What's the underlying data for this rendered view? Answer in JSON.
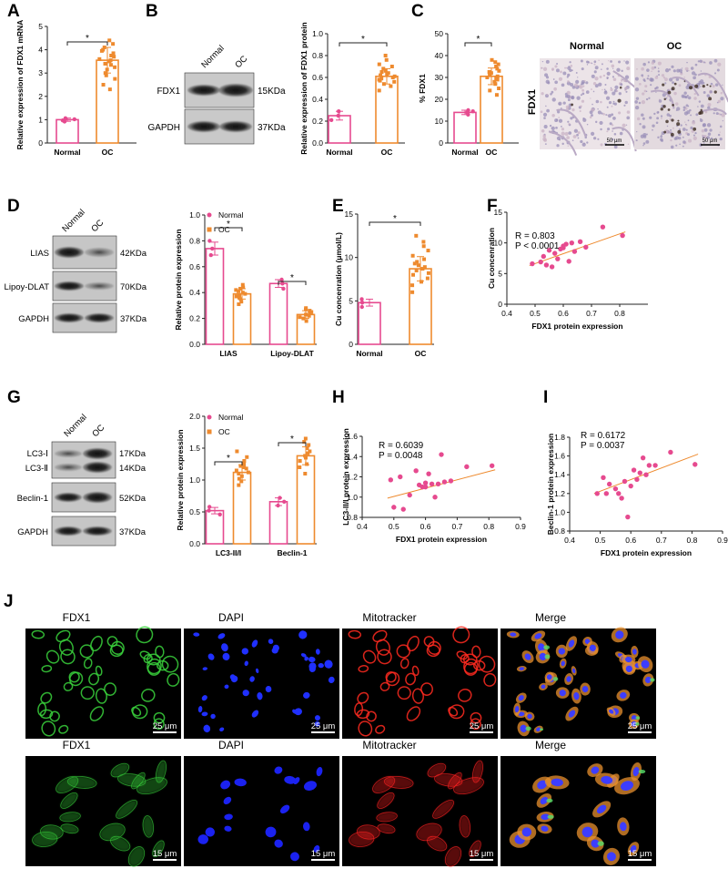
{
  "colors": {
    "normal": "#e64a8f",
    "oc": "#ee8a2e",
    "fit": "#ee8a2e",
    "axis": "#222222"
  },
  "panels": {
    "A": {
      "label": "A"
    },
    "B": {
      "label": "B"
    },
    "C": {
      "label": "C"
    },
    "D": {
      "label": "D"
    },
    "E": {
      "label": "E"
    },
    "F": {
      "label": "F"
    },
    "G": {
      "label": "G"
    },
    "H": {
      "label": "H"
    },
    "I": {
      "label": "I"
    },
    "J": {
      "label": "J"
    }
  },
  "significance": "*",
  "western_blots": {
    "B": {
      "lanes": [
        "Normal",
        "OC"
      ],
      "rows": [
        {
          "name": "FDX1",
          "size": "15KDa"
        },
        {
          "name": "GAPDH",
          "size": "37KDa"
        }
      ]
    },
    "D": {
      "lanes": [
        "Normal",
        "OC"
      ],
      "rows": [
        {
          "name": "LIAS",
          "size": "42KDa"
        },
        {
          "name": "Lipoy-DLAT",
          "size": "70KDa"
        },
        {
          "name": "GAPDH",
          "size": "37KDa"
        }
      ]
    },
    "G": {
      "lanes": [
        "Normal",
        "OC"
      ],
      "rows": [
        {
          "name1": "LC3-Ⅰ",
          "name2": "LC3-Ⅱ",
          "size1": "17KDa",
          "size2": "14KDa"
        },
        {
          "name": "Beclin-1",
          "size": "52KDa"
        },
        {
          "name": "GAPDH",
          "size": "37KDa"
        }
      ]
    }
  },
  "ihc": {
    "row_label": "FDX1",
    "columns": [
      "Normal",
      "OC"
    ],
    "scalebar": "50 μm"
  },
  "fluorescence": {
    "channels": [
      "FDX1",
      "DAPI",
      "Mitotracker",
      "Merge"
    ],
    "rows": [
      {
        "scalebar": "25 μm"
      },
      {
        "scalebar": "15 μm"
      }
    ]
  },
  "chart_data": [
    {
      "panel": "A",
      "type": "bar",
      "categories": [
        "Normal",
        "OC"
      ],
      "values": [
        1.0,
        3.55
      ],
      "errors": [
        0.07,
        0.55
      ],
      "ylabel": "Relative expression of FDX1 mRNA",
      "ylim": [
        0,
        5
      ],
      "yticks": [
        0,
        1,
        2,
        3,
        4,
        5
      ],
      "points": [
        [
          0.92,
          0.97,
          1.02,
          1.06
        ],
        [
          2.3,
          2.5,
          2.75,
          2.9,
          3.0,
          3.15,
          3.25,
          3.35,
          3.4,
          3.5,
          3.55,
          3.6,
          3.7,
          3.75,
          3.85,
          3.95,
          4.0,
          4.1,
          4.25,
          4.4
        ]
      ]
    },
    {
      "panel": "B",
      "type": "bar",
      "categories": [
        "Normal",
        "OC"
      ],
      "values": [
        0.25,
        0.61
      ],
      "errors": [
        0.04,
        0.07
      ],
      "ylabel": "Relative expression of FDX1 protein",
      "ylim": [
        0,
        1.0
      ],
      "yticks": [
        0,
        0.2,
        0.4,
        0.6,
        0.8,
        1.0
      ],
      "points": [
        [
          0.21,
          0.25,
          0.29
        ],
        [
          0.48,
          0.52,
          0.54,
          0.56,
          0.57,
          0.58,
          0.59,
          0.6,
          0.61,
          0.62,
          0.63,
          0.64,
          0.65,
          0.66,
          0.68,
          0.7,
          0.72,
          0.76,
          0.8
        ]
      ]
    },
    {
      "panel": "C",
      "type": "bar",
      "categories": [
        "Normal",
        "OC"
      ],
      "values": [
        14,
        30.5
      ],
      "errors": [
        1.0,
        3.8
      ],
      "ylabel": "% FDX1",
      "ylim": [
        0,
        50
      ],
      "yticks": [
        0,
        10,
        20,
        30,
        40,
        50
      ],
      "points": [
        [
          13,
          14,
          14.5,
          15
        ],
        [
          22,
          24,
          25,
          27,
          28,
          29,
          29.5,
          30,
          30.5,
          31,
          32,
          32.5,
          33,
          34,
          35,
          36,
          37,
          38
        ]
      ]
    },
    {
      "panel": "D",
      "type": "bar",
      "groups": [
        "LIAS",
        "Lipoy-DLAT"
      ],
      "series": [
        {
          "name": "Normal",
          "values": [
            0.74,
            0.47
          ],
          "errors": [
            0.05,
            0.03
          ]
        },
        {
          "name": "OC",
          "values": [
            0.39,
            0.23
          ],
          "errors": [
            0.04,
            0.03
          ]
        }
      ],
      "ylabel": "Relative protein expression",
      "ylim": [
        0,
        1.0
      ],
      "yticks": [
        0,
        0.2,
        0.4,
        0.6,
        0.8,
        1.0
      ],
      "points": {
        "Normal": [
          [
            0.69,
            0.74,
            0.8
          ],
          [
            0.43,
            0.47,
            0.5
          ]
        ],
        "OC": [
          [
            0.31,
            0.33,
            0.35,
            0.36,
            0.37,
            0.38,
            0.39,
            0.4,
            0.41,
            0.42,
            0.43,
            0.44,
            0.46
          ],
          [
            0.18,
            0.2,
            0.21,
            0.22,
            0.23,
            0.24,
            0.25,
            0.26,
            0.27,
            0.28
          ]
        ]
      }
    },
    {
      "panel": "E",
      "type": "bar",
      "categories": [
        "Normal",
        "OC"
      ],
      "values": [
        4.8,
        8.7
      ],
      "errors": [
        0.4,
        1.4
      ],
      "ylabel": "Cu concenration (μmol/L)",
      "ylim": [
        0,
        15
      ],
      "yticks": [
        0,
        5,
        10,
        15
      ],
      "points": [
        [
          4.3,
          4.8,
          5.2
        ],
        [
          6.0,
          6.8,
          7.2,
          7.6,
          8.0,
          8.2,
          8.5,
          8.7,
          8.9,
          9.1,
          9.3,
          9.5,
          9.8,
          10.2,
          10.8,
          11.3,
          11.8,
          12.5
        ]
      ]
    },
    {
      "panel": "F",
      "type": "scatter",
      "xlabel": "FDX1 protein expression",
      "ylabel": "Cu concenration",
      "xlim": [
        0.4,
        0.9
      ],
      "ylim": [
        0,
        15
      ],
      "xticks": [
        0.4,
        0.5,
        0.6,
        0.7,
        0.8
      ],
      "yticks": [
        0,
        5,
        10,
        15
      ],
      "annotation": [
        "R = 0.803",
        "P < 0.0001"
      ],
      "x": [
        0.49,
        0.52,
        0.53,
        0.55,
        0.56,
        0.57,
        0.58,
        0.59,
        0.6,
        0.61,
        0.62,
        0.63,
        0.64,
        0.66,
        0.68,
        0.74,
        0.81,
        0.54,
        0.6
      ],
      "y": [
        6.6,
        6.9,
        7.8,
        8.8,
        6.1,
        8.3,
        7.4,
        9.0,
        9.5,
        9.8,
        7.0,
        10.0,
        8.6,
        10.2,
        9.3,
        12.6,
        11.2,
        6.4,
        9.2
      ],
      "fit": [
        [
          0.48,
          6.3
        ],
        [
          0.82,
          11.8
        ]
      ]
    },
    {
      "panel": "G",
      "type": "bar",
      "groups": [
        "LC3-II/I",
        "Beclin-1"
      ],
      "series": [
        {
          "name": "Normal",
          "values": [
            0.52,
            0.66
          ],
          "errors": [
            0.05,
            0.06
          ]
        },
        {
          "name": "OC",
          "values": [
            1.12,
            1.38
          ],
          "errors": [
            0.12,
            0.14
          ]
        }
      ],
      "ylabel": "Relative protein expression",
      "ylim": [
        0,
        2.0
      ],
      "yticks": [
        0,
        0.5,
        1.0,
        1.5,
        2.0
      ],
      "points": {
        "Normal": [
          [
            0.46,
            0.52,
            0.58
          ],
          [
            0.6,
            0.66,
            0.72
          ]
        ],
        "OC": [
          [
            0.92,
            0.98,
            1.02,
            1.06,
            1.1,
            1.12,
            1.15,
            1.18,
            1.2,
            1.22,
            1.25,
            1.3,
            1.36,
            1.45
          ],
          [
            1.1,
            1.2,
            1.25,
            1.3,
            1.35,
            1.38,
            1.42,
            1.45,
            1.5,
            1.55,
            1.6,
            1.65
          ]
        ]
      }
    },
    {
      "panel": "H",
      "type": "scatter",
      "xlabel": "FDX1 protein expression",
      "ylabel": "LC3-II/I protein expression",
      "xlim": [
        0.4,
        0.9
      ],
      "ylim": [
        0.8,
        1.6
      ],
      "xticks": [
        0.4,
        0.5,
        0.6,
        0.7,
        0.8,
        0.9
      ],
      "yticks": [
        0.8,
        1.0,
        1.2,
        1.4,
        1.6
      ],
      "annotation": [
        "R = 0.6039",
        "P = 0.0048"
      ],
      "x": [
        0.49,
        0.5,
        0.52,
        0.53,
        0.55,
        0.57,
        0.58,
        0.59,
        0.6,
        0.61,
        0.62,
        0.63,
        0.64,
        0.65,
        0.66,
        0.68,
        0.73,
        0.81,
        0.6
      ],
      "y": [
        1.17,
        0.9,
        1.2,
        0.88,
        1.02,
        1.26,
        1.12,
        1.1,
        1.14,
        1.23,
        1.13,
        1.0,
        1.13,
        1.42,
        1.15,
        1.16,
        1.3,
        1.31,
        1.1
      ],
      "fit": [
        [
          0.48,
          0.99
        ],
        [
          0.82,
          1.27
        ]
      ]
    },
    {
      "panel": "I",
      "type": "scatter",
      "xlabel": "FDX1 protein expression",
      "ylabel": "Beclin-1 protein expression",
      "xlim": [
        0.4,
        0.9
      ],
      "ylim": [
        0.8,
        1.8
      ],
      "xticks": [
        0.4,
        0.5,
        0.6,
        0.7,
        0.8,
        0.9
      ],
      "yticks": [
        0.8,
        1.0,
        1.2,
        1.4,
        1.6,
        1.8
      ],
      "annotation": [
        "R = 0.6172",
        "P = 0.0037"
      ],
      "x": [
        0.49,
        0.51,
        0.52,
        0.53,
        0.55,
        0.56,
        0.57,
        0.58,
        0.59,
        0.6,
        0.61,
        0.62,
        0.63,
        0.64,
        0.65,
        0.66,
        0.68,
        0.73,
        0.81
      ],
      "y": [
        1.2,
        1.37,
        1.2,
        1.3,
        1.25,
        1.2,
        1.15,
        1.33,
        0.95,
        1.28,
        1.45,
        1.35,
        1.42,
        1.58,
        1.4,
        1.5,
        1.5,
        1.64,
        1.51
      ],
      "fit": [
        [
          0.48,
          1.2
        ],
        [
          0.82,
          1.62
        ]
      ]
    }
  ]
}
